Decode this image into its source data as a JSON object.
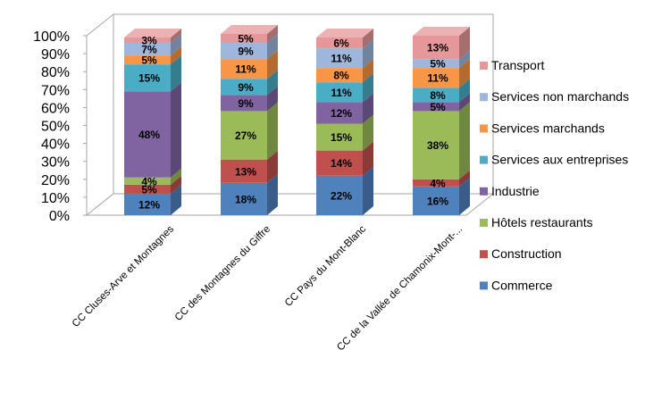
{
  "chart_data": {
    "type": "bar",
    "stacked": true,
    "three_d": true,
    "percent": true,
    "title": "",
    "xlabel": "",
    "ylabel": "",
    "ylim": [
      0,
      100
    ],
    "y_ticks": [
      "0%",
      "10%",
      "20%",
      "30%",
      "40%",
      "50%",
      "60%",
      "70%",
      "80%",
      "90%",
      "100%"
    ],
    "grid": false,
    "legend_position": "right",
    "categories": [
      "CC Cluses-Arve et Montagnes",
      "CC des Montagnes du Giffre",
      "CC Pays du Mont-Blanc",
      "CC de la Vallée de Chamonix-Mont-..."
    ],
    "series": [
      {
        "name": "Commerce",
        "color": "#4f81bd",
        "values": [
          12,
          18,
          22,
          16
        ],
        "labels": [
          "12%",
          "18%",
          "22%",
          "16%"
        ]
      },
      {
        "name": "Construction",
        "color": "#c0504d",
        "values": [
          5,
          13,
          14,
          4
        ],
        "labels": [
          "5%",
          "13%",
          "14%",
          "4%"
        ]
      },
      {
        "name": "Hôtels restaurants",
        "color": "#9bbb59",
        "values": [
          4,
          27,
          15,
          38
        ],
        "labels": [
          "4%",
          "27%",
          "15%",
          "38%"
        ]
      },
      {
        "name": "Industrie",
        "color": "#8064a2",
        "values": [
          48,
          9,
          12,
          5
        ],
        "labels": [
          "48%",
          "9%",
          "12%",
          "5%"
        ]
      },
      {
        "name": "Services aux entreprises",
        "color": "#4bacc6",
        "values": [
          15,
          9,
          11,
          8
        ],
        "labels": [
          "15%",
          "9%",
          "11%",
          "8%"
        ]
      },
      {
        "name": "Services marchands",
        "color": "#f79646",
        "values": [
          5,
          11,
          8,
          11
        ],
        "labels": [
          "5%",
          "11%",
          "8%",
          "11%"
        ]
      },
      {
        "name": "Services non marchands",
        "color": "#9eb6dc",
        "values": [
          7,
          9,
          11,
          5
        ],
        "labels": [
          "7%",
          "9%",
          "11%",
          "5%"
        ]
      },
      {
        "name": "Transport",
        "color": "#e6979a",
        "values": [
          3,
          5,
          6,
          13
        ],
        "labels": [
          "3%",
          "5%",
          "6%",
          "13%"
        ]
      }
    ]
  }
}
